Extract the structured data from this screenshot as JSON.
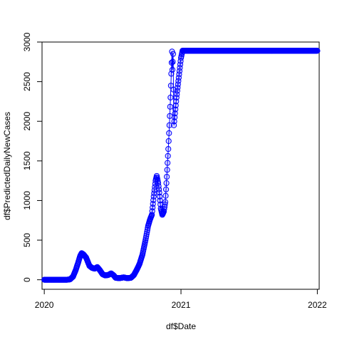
{
  "chart_data": {
    "type": "line",
    "marker": "open-circle",
    "xlabel": "df$Date",
    "ylabel": "df$PredictedDailyNewCases",
    "xlim": [
      "2019-12-26",
      "2022-01-06"
    ],
    "ylim": [
      -120,
      3000
    ],
    "x_ticks": [
      "2020-01-01",
      "2021-01-01",
      "2022-01-01"
    ],
    "x_tick_labels": [
      "2020",
      "2021",
      "2022"
    ],
    "y_ticks": [
      0,
      500,
      1000,
      1500,
      2000,
      2500,
      3000
    ],
    "y_tick_labels": [
      "0",
      "500",
      "1000",
      "1500",
      "2000",
      "2500",
      "3000"
    ],
    "line_color": "#0000ff",
    "marker_color": "#0000ff",
    "points": [
      [
        "2020-01-01",
        0
      ],
      [
        "2020-02-01",
        0
      ],
      [
        "2020-03-01",
        0
      ],
      [
        "2020-03-10",
        5
      ],
      [
        "2020-03-18",
        40
      ],
      [
        "2020-03-25",
        120
      ],
      [
        "2020-04-01",
        220
      ],
      [
        "2020-04-06",
        300
      ],
      [
        "2020-04-10",
        335
      ],
      [
        "2020-04-15",
        320
      ],
      [
        "2020-04-22",
        280
      ],
      [
        "2020-05-01",
        175
      ],
      [
        "2020-05-08",
        150
      ],
      [
        "2020-05-15",
        140
      ],
      [
        "2020-05-22",
        160
      ],
      [
        "2020-05-29",
        120
      ],
      [
        "2020-06-05",
        70
      ],
      [
        "2020-06-12",
        55
      ],
      [
        "2020-06-20",
        60
      ],
      [
        "2020-06-28",
        80
      ],
      [
        "2020-07-05",
        55
      ],
      [
        "2020-07-10",
        25
      ],
      [
        "2020-07-20",
        20
      ],
      [
        "2020-08-01",
        30
      ],
      [
        "2020-08-10",
        20
      ],
      [
        "2020-08-20",
        25
      ],
      [
        "2020-08-28",
        60
      ],
      [
        "2020-09-05",
        130
      ],
      [
        "2020-09-12",
        200
      ],
      [
        "2020-09-20",
        320
      ],
      [
        "2020-09-28",
        500
      ],
      [
        "2020-10-05",
        680
      ],
      [
        "2020-10-10",
        760
      ],
      [
        "2020-10-15",
        820
      ],
      [
        "2020-10-20",
        1050
      ],
      [
        "2020-10-25",
        1250
      ],
      [
        "2020-10-28",
        1310
      ],
      [
        "2020-11-01",
        1220
      ],
      [
        "2020-11-04",
        1100
      ],
      [
        "2020-11-08",
        900
      ],
      [
        "2020-11-12",
        820
      ],
      [
        "2020-11-16",
        860
      ],
      [
        "2020-11-20",
        980
      ],
      [
        "2020-11-24",
        1300
      ],
      [
        "2020-11-28",
        1650
      ],
      [
        "2020-12-01",
        1950
      ],
      [
        "2020-12-04",
        2300
      ],
      [
        "2020-12-06",
        2600
      ],
      [
        "2020-12-08",
        2880
      ],
      [
        "2020-12-09",
        2650
      ],
      [
        "2020-12-11",
        2850
      ],
      [
        "2020-12-13",
        1950
      ],
      [
        "2020-12-16",
        2100
      ],
      [
        "2020-12-20",
        2300
      ],
      [
        "2020-12-26",
        2550
      ],
      [
        "2021-01-01",
        2800
      ],
      [
        "2021-01-05",
        2890
      ],
      [
        "2021-03-01",
        2890
      ],
      [
        "2021-06-01",
        2890
      ],
      [
        "2021-09-01",
        2890
      ],
      [
        "2022-01-01",
        2890
      ]
    ]
  }
}
